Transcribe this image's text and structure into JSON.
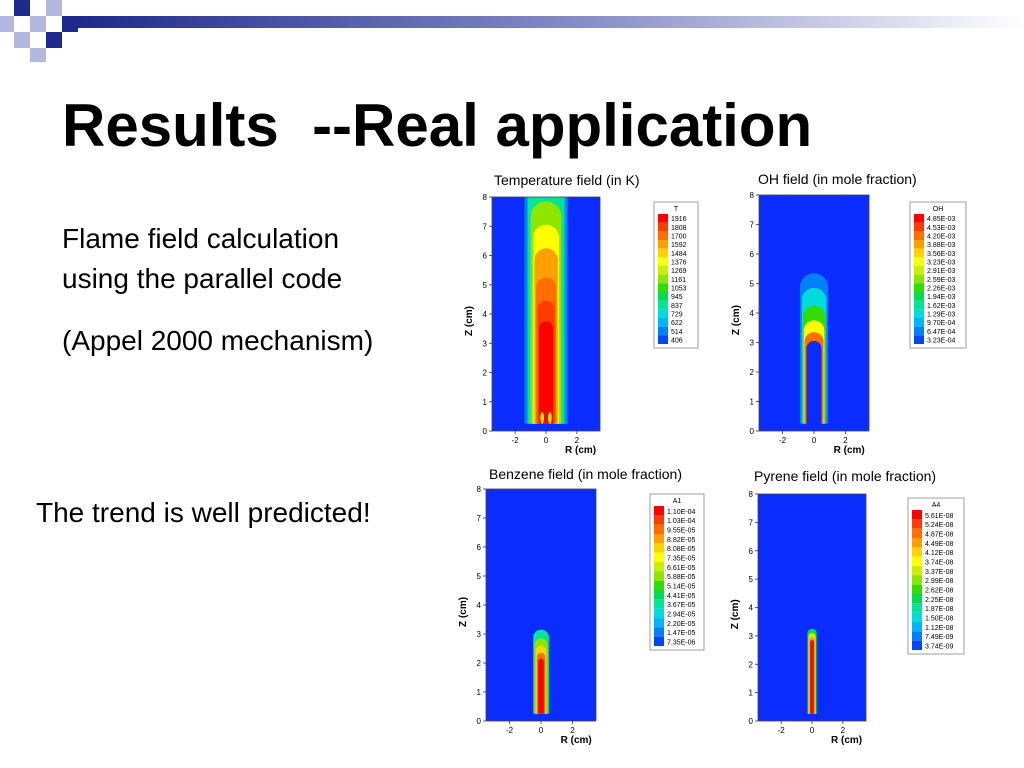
{
  "slide": {
    "title": "Results  --Real application",
    "body_lines": [
      "Flame field calculation",
      "using the parallel code",
      "(Appel 2000 mechanism)"
    ],
    "conclusion": "The trend is well predicted!"
  },
  "colors": {
    "deco_blue": "#1e2a8c",
    "deco_light": "#b3b8de",
    "field_background": "#0a2cff",
    "colormap": [
      "#0000ff",
      "#0046ff",
      "#0080ff",
      "#00b4ff",
      "#00dcdc",
      "#00e696",
      "#00dc50",
      "#32dc00",
      "#8ce600",
      "#c8f000",
      "#ffff00",
      "#ffd200",
      "#ffa000",
      "#ff6e00",
      "#ff3c00",
      "#ff0000"
    ]
  },
  "chart_data": [
    {
      "type": "heatmap",
      "title": "Temperature field (in K)",
      "xlabel": "R (cm)",
      "ylabel": "Z (cm)",
      "xticks": [
        "-2",
        "0",
        "2"
      ],
      "yticks": [
        "0",
        "1",
        "2",
        "3",
        "4",
        "5",
        "6",
        "7",
        "8"
      ],
      "xlim": [
        -3.5,
        3.5
      ],
      "ylim": [
        0,
        8
      ],
      "legend_title": "T",
      "legend_values": [
        "1916",
        "1808",
        "1700",
        "1592",
        "1484",
        "1376",
        "1269",
        "1161",
        "1053",
        "945",
        "837",
        "729",
        "622",
        "514",
        "406"
      ]
    },
    {
      "type": "heatmap",
      "title": "OH field (in mole fraction)",
      "xlabel": "R (cm)",
      "ylabel": "Z (cm)",
      "xticks": [
        "-2",
        "0",
        "2"
      ],
      "yticks": [
        "0",
        "1",
        "2",
        "3",
        "4",
        "5",
        "6",
        "7",
        "8"
      ],
      "xlim": [
        -3.5,
        3.5
      ],
      "ylim": [
        0,
        8
      ],
      "legend_title": "OH",
      "legend_values": [
        "4.85E-03",
        "4.53E-03",
        "4.20E-03",
        "3.88E-03",
        "3.56E-03",
        "3.23E-03",
        "2.91E-03",
        "2.59E-03",
        "2.26E-03",
        "1.94E-03",
        "1.62E-03",
        "1.29E-03",
        "9.70E-04",
        "6.47E-04",
        "3.23E-04"
      ]
    },
    {
      "type": "heatmap",
      "title": "Benzene field (in mole fraction)",
      "xlabel": "R (cm)",
      "ylabel": "Z (cm)",
      "xticks": [
        "-2",
        "0",
        "2"
      ],
      "yticks": [
        "0",
        "1",
        "2",
        "3",
        "4",
        "5",
        "6",
        "7",
        "8"
      ],
      "xlim": [
        -3.5,
        3.5
      ],
      "ylim": [
        0,
        8
      ],
      "legend_title": "A1",
      "legend_values": [
        "1.10E-04",
        "1.03E-04",
        "9.55E-05",
        "8.82E-05",
        "8.08E-05",
        "7.35E-05",
        "6.61E-05",
        "5.88E-05",
        "5.14E-05",
        "4.41E-05",
        "3.67E-05",
        "2.94E-05",
        "2.20E-05",
        "1.47E-05",
        "7.35E-06"
      ]
    },
    {
      "type": "heatmap",
      "title": "Pyrene field (in mole fraction)",
      "xlabel": "R (cm)",
      "ylabel": "Z (cm)",
      "xticks": [
        "-2",
        "0",
        "2"
      ],
      "yticks": [
        "0",
        "1",
        "2",
        "3",
        "4",
        "5",
        "6",
        "7",
        "8"
      ],
      "xlim": [
        -3.5,
        3.5
      ],
      "ylim": [
        0,
        8
      ],
      "legend_title": "A4",
      "legend_values": [
        "5.61E-08",
        "5.24E-08",
        "4.87E-08",
        "4.49E-08",
        "4.12E-08",
        "3.74E-08",
        "3.37E-08",
        "2.99E-08",
        "2.62E-08",
        "2.25E-08",
        "1.87E-08",
        "1.50E-08",
        "1.12E-08",
        "7.49E-09",
        "3.74E-09"
      ]
    }
  ]
}
